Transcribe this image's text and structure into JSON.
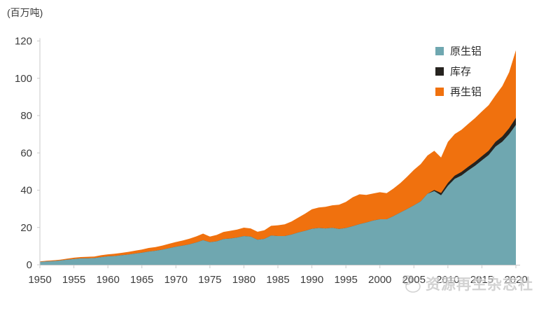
{
  "axes": {
    "y_unit_label": "(百万吨)",
    "y_ticks": [
      120,
      100,
      80,
      60,
      40,
      20,
      0
    ],
    "x_ticks": [
      1950,
      1955,
      1960,
      1965,
      1970,
      1975,
      1980,
      1985,
      1990,
      1995,
      2000,
      2005,
      2010,
      2015,
      2020
    ]
  },
  "legend": {
    "items": [
      {
        "label": "原生铝",
        "color": "#6fa7b0"
      },
      {
        "label": "库存",
        "color": "#26231f"
      },
      {
        "label": "再生铝",
        "color": "#f0710e"
      }
    ]
  },
  "watermark": {
    "text": "资源再生杂志社",
    "logo": "mascot-outline-icon"
  },
  "chart_data": {
    "type": "area",
    "stacked": true,
    "title": "",
    "xlabel": "",
    "ylabel": "百万吨",
    "xlim": [
      1950,
      2020
    ],
    "ylim": [
      0,
      120
    ],
    "grid": false,
    "legend_position": "top-right",
    "x_start": 1950,
    "x_end": 2020,
    "series": [
      {
        "name": "原生铝",
        "color": "#6fa7b0",
        "values": [
          1.5,
          1.8,
          2.0,
          2.3,
          2.7,
          3.1,
          3.4,
          3.5,
          3.6,
          4.1,
          4.5,
          4.7,
          5.1,
          5.5,
          6.0,
          6.5,
          7.1,
          7.5,
          8.1,
          8.9,
          9.7,
          10.3,
          11.0,
          12.0,
          13.2,
          12.1,
          12.6,
          13.8,
          14.1,
          14.6,
          15.4,
          15.1,
          13.4,
          13.9,
          15.7,
          15.4,
          15.4,
          16.2,
          17.3,
          18.2,
          19.3,
          19.7,
          19.5,
          19.8,
          19.2,
          19.7,
          20.7,
          21.8,
          22.7,
          23.7,
          24.4,
          24.4,
          26.1,
          28.0,
          29.9,
          31.9,
          34.0,
          38.1,
          39.5,
          37.3,
          42.4,
          46.1,
          47.9,
          50.6,
          53.1,
          56.0,
          58.9,
          63.4,
          66.0,
          70.0,
          75.0
        ]
      },
      {
        "name": "库存",
        "color": "#26231f",
        "values": [
          0,
          0,
          0,
          0,
          0,
          0,
          0,
          0,
          0,
          0,
          0,
          0,
          0,
          0,
          0,
          0,
          0,
          0,
          0,
          0,
          0,
          0,
          0,
          0,
          0,
          0,
          0,
          0,
          0,
          0,
          0,
          0,
          0,
          0,
          0,
          0,
          0,
          0,
          0,
          0,
          0,
          0,
          0,
          0,
          0,
          0,
          0,
          0,
          0,
          0,
          0,
          0,
          0,
          0,
          0,
          0,
          0,
          0,
          0.6,
          1.2,
          1.5,
          1.7,
          1.9,
          2.0,
          2.1,
          2.2,
          2.3,
          2.5,
          2.8,
          3.2,
          3.8
        ]
      },
      {
        "name": "再生铝",
        "color": "#f0710e",
        "values": [
          0.3,
          0.35,
          0.4,
          0.45,
          0.55,
          0.7,
          0.75,
          0.8,
          0.85,
          1.0,
          1.1,
          1.2,
          1.3,
          1.4,
          1.55,
          1.7,
          1.9,
          2.0,
          2.2,
          2.35,
          2.5,
          2.7,
          3.0,
          3.2,
          3.5,
          3.0,
          3.4,
          3.8,
          4.1,
          4.3,
          4.5,
          4.4,
          4.3,
          4.6,
          5.2,
          5.8,
          6.3,
          7.0,
          8.0,
          9.2,
          10.5,
          11.0,
          11.6,
          12.1,
          13.0,
          14.0,
          15.5,
          16.0,
          14.8,
          14.5,
          14.5,
          14.0,
          14.8,
          15.8,
          17.3,
          19.0,
          20.0,
          20.5,
          21.0,
          19.0,
          22.0,
          22.3,
          22.6,
          23.0,
          23.5,
          24.0,
          24.4,
          25.0,
          27.0,
          30.0,
          36.2
        ]
      }
    ]
  }
}
